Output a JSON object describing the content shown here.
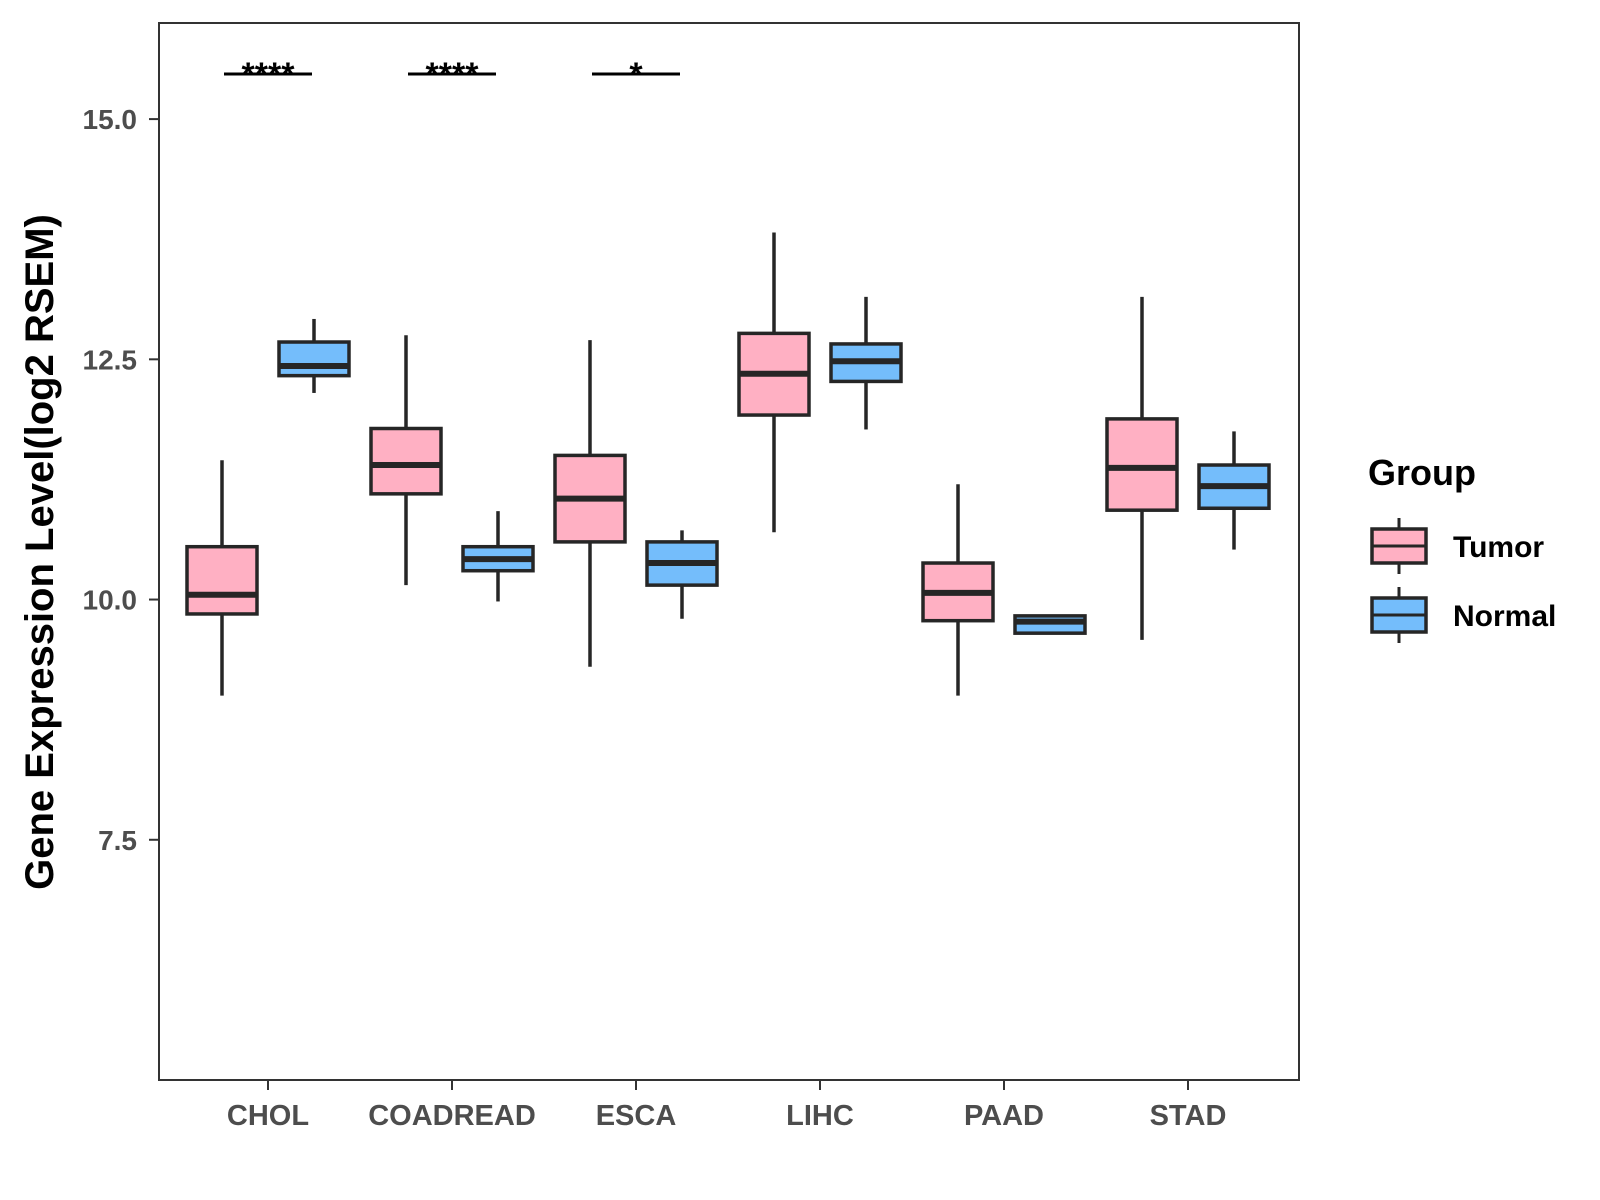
{
  "chart_data": {
    "type": "boxplot",
    "title": "",
    "xlabel": "",
    "ylabel": "Gene Expression Level(log2 RSEM)",
    "ylim": [
      5.0,
      16.0
    ],
    "yticks": [
      7.5,
      10.0,
      12.5,
      15.0
    ],
    "ytick_labels": [
      "7.5",
      "10.0",
      "12.5",
      "15.0"
    ],
    "categories": [
      "CHOL",
      "COADREAD",
      "ESCA",
      "LIHC",
      "PAAD",
      "STAD"
    ],
    "legend": {
      "title": "Group",
      "position": "right"
    },
    "series": [
      {
        "name": "Tumor",
        "color": "#FFB0C3",
        "boxes": [
          {
            "category": "CHOL",
            "whisker_low": 9.0,
            "q1": 9.85,
            "median": 10.05,
            "q3": 10.55,
            "whisker_high": 11.45
          },
          {
            "category": "COADREAD",
            "whisker_low": 10.15,
            "q1": 11.1,
            "median": 11.4,
            "q3": 11.78,
            "whisker_high": 12.75
          },
          {
            "category": "ESCA",
            "whisker_low": 9.3,
            "q1": 10.6,
            "median": 11.05,
            "q3": 11.5,
            "whisker_high": 12.7
          },
          {
            "category": "LIHC",
            "whisker_low": 10.7,
            "q1": 11.92,
            "median": 12.35,
            "q3": 12.77,
            "whisker_high": 13.82
          },
          {
            "category": "PAAD",
            "whisker_low": 9.0,
            "q1": 9.78,
            "median": 10.07,
            "q3": 10.38,
            "whisker_high": 11.2
          },
          {
            "category": "STAD",
            "whisker_low": 9.58,
            "q1": 10.93,
            "median": 11.37,
            "q3": 11.88,
            "whisker_high": 13.15
          }
        ]
      },
      {
        "name": "Normal",
        "color": "#74BDFB",
        "boxes": [
          {
            "category": "CHOL",
            "whisker_low": 12.15,
            "q1": 12.33,
            "median": 12.43,
            "q3": 12.68,
            "whisker_high": 12.92
          },
          {
            "category": "COADREAD",
            "whisker_low": 9.98,
            "q1": 10.3,
            "median": 10.42,
            "q3": 10.55,
            "whisker_high": 10.92
          },
          {
            "category": "ESCA",
            "whisker_low": 9.8,
            "q1": 10.15,
            "median": 10.38,
            "q3": 10.6,
            "whisker_high": 10.72
          },
          {
            "category": "LIHC",
            "whisker_low": 11.77,
            "q1": 12.27,
            "median": 12.48,
            "q3": 12.66,
            "whisker_high": 13.15
          },
          {
            "category": "PAAD",
            "whisker_low": 9.65,
            "q1": 9.65,
            "median": 9.77,
            "q3": 9.83,
            "whisker_high": 9.83
          },
          {
            "category": "STAD",
            "whisker_low": 10.52,
            "q1": 10.95,
            "median": 11.18,
            "q3": 11.4,
            "whisker_high": 11.75
          }
        ]
      }
    ],
    "significance": [
      {
        "category": "CHOL",
        "label": "****"
      },
      {
        "category": "COADREAD",
        "label": "****"
      },
      {
        "category": "ESCA",
        "label": "*"
      }
    ],
    "grid": false
  }
}
